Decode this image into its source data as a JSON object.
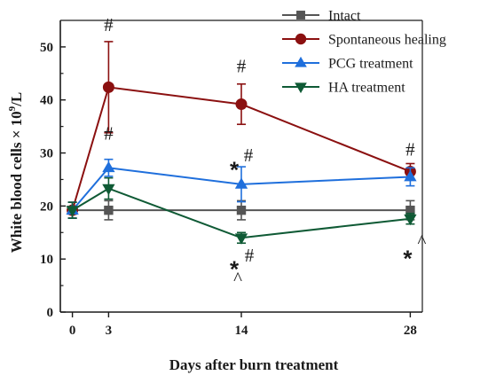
{
  "chart_data": {
    "type": "line",
    "x": [
      0,
      3,
      14,
      28
    ],
    "xlabel": "Days after burn treatment",
    "ylabel": "White blood cells × 10^9/L",
    "ylabel_main": "White blood cells × 10",
    "ylabel_sup": "9",
    "ylabel_tail": "/L",
    "xlim": [
      -1,
      29
    ],
    "ylim": [
      0,
      55
    ],
    "xticks": [
      0,
      3,
      14,
      28
    ],
    "yticks": [
      0,
      10,
      20,
      30,
      40,
      50
    ],
    "grid": false,
    "legend_position": "top-right",
    "series": [
      {
        "name": "Intact",
        "color": "#555555",
        "marker": "square",
        "values": [
          19.2,
          19.2,
          19.2,
          19.2
        ],
        "errors": [
          1.5,
          1.8,
          1.8,
          1.8
        ]
      },
      {
        "name": "Spontaneous healing",
        "color": "#8b1010",
        "marker": "circle",
        "values": [
          19.2,
          42.4,
          39.2,
          26.5
        ],
        "errors": [
          1.5,
          8.6,
          3.8,
          1.5
        ]
      },
      {
        "name": "PCG treatment",
        "color": "#1f6fdc",
        "marker": "triangle-up",
        "values": [
          19.2,
          27.2,
          24.1,
          25.5
        ],
        "errors": [
          1.5,
          1.6,
          3.3,
          1.7
        ]
      },
      {
        "name": "HA treatment",
        "color": "#0f5a35",
        "marker": "triangle-down",
        "values": [
          19.2,
          23.3,
          14.0,
          17.6
        ],
        "errors": [
          1.5,
          2.0,
          1.0,
          1.0
        ]
      }
    ],
    "annotations": [
      {
        "text": "#",
        "x": 3,
        "y": 53,
        "style": "normal"
      },
      {
        "text": "#",
        "x": 3,
        "y": 32.5,
        "style": "normal"
      },
      {
        "text": "#",
        "x": 14,
        "y": 45.2,
        "style": "normal"
      },
      {
        "text": "*",
        "x": 14,
        "y": 27.3,
        "style": "bold",
        "dx": -8
      },
      {
        "text": "#",
        "x": 14,
        "y": 28.4,
        "style": "normal",
        "dx": 8
      },
      {
        "text": "*",
        "x": 14,
        "y": 8.6,
        "style": "bold",
        "dx": -8
      },
      {
        "text": "^",
        "x": 14,
        "y": 5.2,
        "style": "normal",
        "dx": -4
      },
      {
        "text": "#",
        "x": 14,
        "y": 9.5,
        "style": "normal",
        "dx": 9
      },
      {
        "text": "#",
        "x": 28,
        "y": 29.5,
        "style": "normal"
      },
      {
        "text": "*",
        "x": 28,
        "y": 10.6,
        "style": "bold",
        "dx": -3
      },
      {
        "text": "^",
        "x": 28,
        "y": 12.2,
        "style": "normal",
        "dx": 13
      }
    ]
  }
}
